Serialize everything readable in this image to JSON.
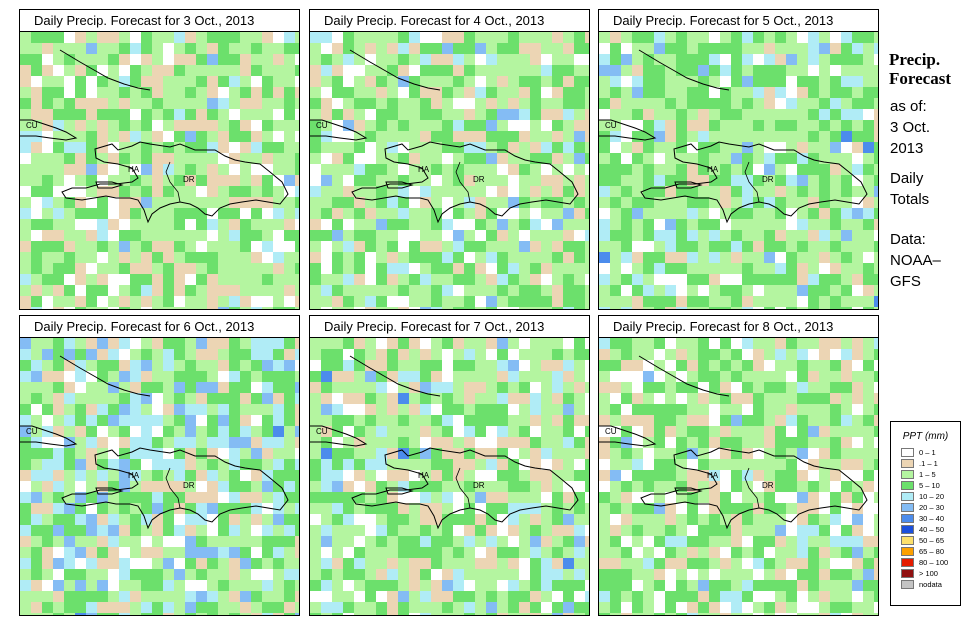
{
  "panels": [
    {
      "title": "Daily Precip. Forecast for  3 Oct., 2013",
      "seed": 3,
      "profile": "p1"
    },
    {
      "title": "Daily Precip. Forecast for  4 Oct., 2013",
      "seed": 4,
      "profile": "p2"
    },
    {
      "title": "Daily Precip. Forecast for  5 Oct., 2013",
      "seed": 5,
      "profile": "p3"
    },
    {
      "title": "Daily Precip. Forecast for  6 Oct., 2013",
      "seed": 6,
      "profile": "p4"
    },
    {
      "title": "Daily Precip. Forecast for  7 Oct., 2013",
      "seed": 7,
      "profile": "p5"
    },
    {
      "title": "Daily Precip. Forecast for  8 Oct., 2013",
      "seed": 8,
      "profile": "p6"
    }
  ],
  "map_labels": {
    "cu": "CU",
    "ha": "HA",
    "dr": "DR"
  },
  "side_panel": {
    "title_line1": "Precip.",
    "title_line2": "Forecast",
    "asof_line1": "as of:",
    "asof_line2": "3 Oct.",
    "asof_line3": "2013",
    "daily_line1": "Daily",
    "daily_line2": "Totals",
    "data_line1": "Data:",
    "data_line2": "NOAA–",
    "data_line3": "GFS"
  },
  "legend": {
    "title": "PPT (mm)",
    "items": [
      {
        "label": "0 – 1",
        "color": "#ffffff"
      },
      {
        "label": ".1 – 1",
        "color": "#ecd5b4"
      },
      {
        "label": "1 – 5",
        "color": "#b4f5a0"
      },
      {
        "label": "5 – 10",
        "color": "#6ce06c"
      },
      {
        "label": "10 – 20",
        "color": "#b0ecf6"
      },
      {
        "label": "20 – 30",
        "color": "#84bcf4"
      },
      {
        "label": "30 – 40",
        "color": "#4c8cec"
      },
      {
        "label": "40 – 50",
        "color": "#1c50dc"
      },
      {
        "label": "50 – 65",
        "color": "#fce06c"
      },
      {
        "label": "65 – 80",
        "color": "#fca000"
      },
      {
        "label": "80 – 100",
        "color": "#e41c00"
      },
      {
        "label": "> 100",
        "color": "#901010"
      },
      {
        "label": "nodata",
        "color": "#c4c4c4"
      }
    ]
  }
}
